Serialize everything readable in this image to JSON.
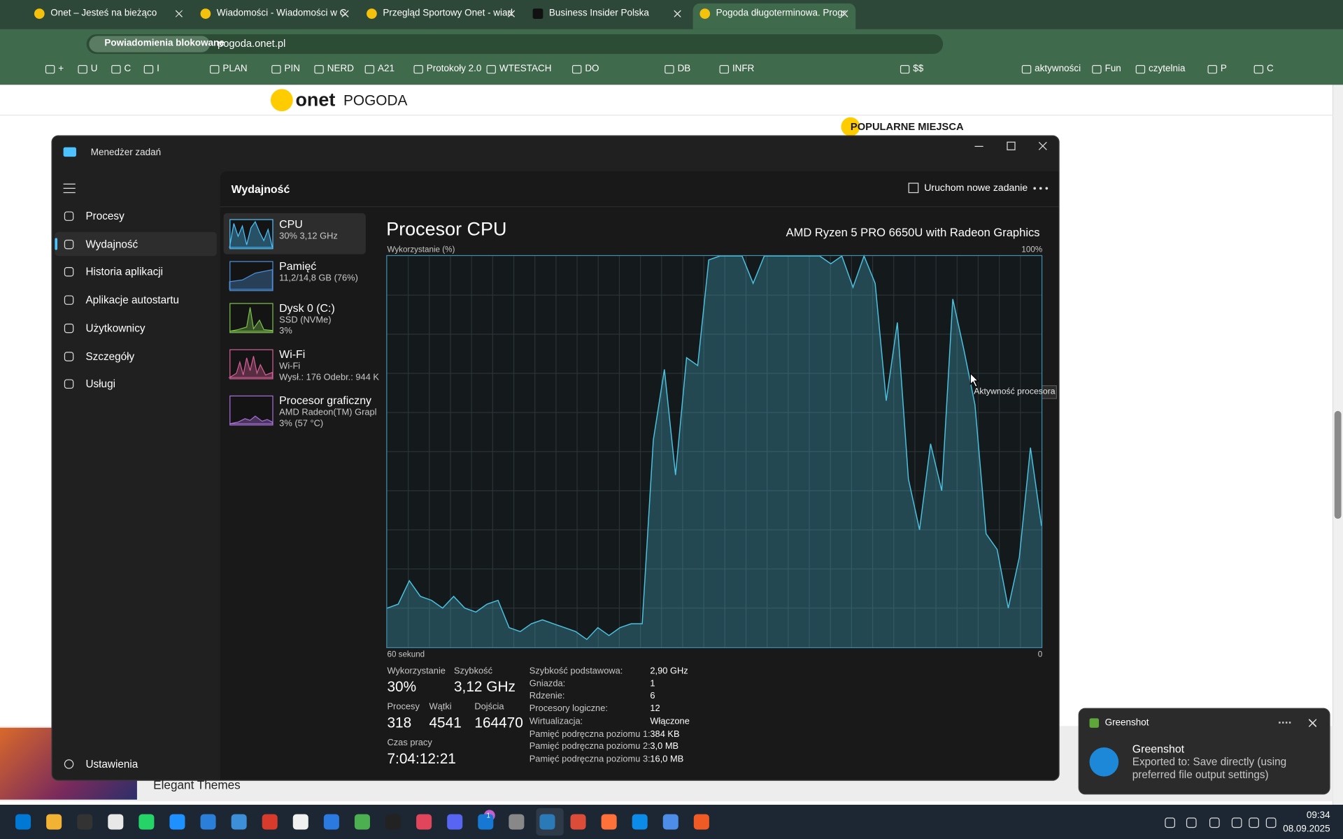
{
  "browser": {
    "tabs": [
      "Onet – Jesteś na bieżąco",
      "Wiadomości - Wiadomości w C",
      "Przegląd Sportowy Onet - wiad",
      "Business Insider Polska",
      "Pogoda długoterminowa. Progr"
    ],
    "notifications_chip": "Powiadomienia blokowane",
    "url": "pogoda.onet.pl",
    "bookmarks": [
      "+",
      "U",
      "C",
      "I",
      "PLAN",
      "PIN",
      "NERD",
      "A21",
      "Protokoły 2.0",
      "WTESTACH",
      "DO",
      "DB",
      "INFR",
      "$$",
      "aktywności",
      "Fun",
      "czytelnia",
      "P",
      "C"
    ]
  },
  "page": {
    "logo": "onet",
    "logo_section": "POGODA",
    "popular": "POPULARNE MIEJSCA",
    "ad_caption": "Elegant Themes"
  },
  "task_manager": {
    "title": "Menedżer zadań",
    "nav": [
      "Procesy",
      "Wydajność",
      "Historia aplikacji",
      "Aplikacje autostartu",
      "Użytkownicy",
      "Szczegóły",
      "Usługi"
    ],
    "settings": "Ustawienia",
    "section": "Wydajność",
    "run_task": "Uruchom nowe zadanie",
    "devices": [
      {
        "name": "CPU",
        "lines": [
          "30% 3,12 GHz"
        ]
      },
      {
        "name": "Pamięć",
        "lines": [
          "11,2/14,8 GB (76%)"
        ]
      },
      {
        "name": "Dysk 0 (C:)",
        "lines": [
          "SSD (NVMe)",
          "3%"
        ]
      },
      {
        "name": "Wi-Fi",
        "lines": [
          "Wi-Fi",
          "Wysł.: 176 Odebr.: 944 K"
        ]
      },
      {
        "name": "Procesor graficzny",
        "lines": [
          "AMD Radeon(TM) Grapl",
          "3% (57 °C)"
        ]
      }
    ],
    "heading": "Procesor CPU",
    "model": "AMD Ryzen 5 PRO 6650U with Radeon Graphics",
    "cpu_graph": {
      "type": "area",
      "y_label": "Wykorzystanie (%)",
      "y_max_label": "100%",
      "x_start_label": "60 sekund",
      "x_end_label": "0",
      "tooltip": "Aktywność procesora",
      "ylim": [
        0,
        100
      ],
      "color": "#4cc2e0",
      "values": [
        10,
        11,
        17,
        13,
        12,
        10,
        13,
        10,
        9,
        11,
        12,
        5,
        4,
        6,
        7,
        6,
        5,
        4,
        2,
        5,
        3,
        5,
        6,
        6,
        53,
        71,
        44,
        74,
        72,
        99,
        100,
        100,
        100,
        93,
        100,
        100,
        100,
        100,
        100,
        100,
        98,
        100,
        92,
        100,
        93,
        63,
        83,
        43,
        30,
        52,
        40,
        89,
        76,
        62,
        29,
        25,
        10,
        23,
        51,
        31
      ]
    },
    "stats": [
      {
        "label": "Wykorzystanie",
        "value": "30%"
      },
      {
        "label": "Szybkość",
        "value": "3,12 GHz"
      },
      {
        "label": "Procesy",
        "value": "318"
      },
      {
        "label": "Wątki",
        "value": "4541"
      },
      {
        "label": "Dojścia",
        "value": "164470"
      },
      {
        "label": "Czas pracy",
        "value": "7:04:12:21"
      }
    ],
    "details": [
      [
        "Szybkość podstawowa:",
        "2,90 GHz"
      ],
      [
        "Gniazda:",
        "1"
      ],
      [
        "Rdzenie:",
        "6"
      ],
      [
        "Procesory logiczne:",
        "12"
      ],
      [
        "Wirtualizacja:",
        "Włączone"
      ],
      [
        "Pamięć podręczna poziomu 1:",
        "384 KB"
      ],
      [
        "Pamięć podręczna poziomu 2:",
        "3,0 MB"
      ],
      [
        "Pamięć podręczna poziomu 3:",
        "16,0 MB"
      ]
    ]
  },
  "notification": {
    "app": "Greenshot",
    "title": "Greenshot",
    "body": "Exported to: Save directly (using preferred file output settings)"
  },
  "taskbar": {
    "badge": "1",
    "time": "09:34",
    "date": "08.09.2025"
  }
}
